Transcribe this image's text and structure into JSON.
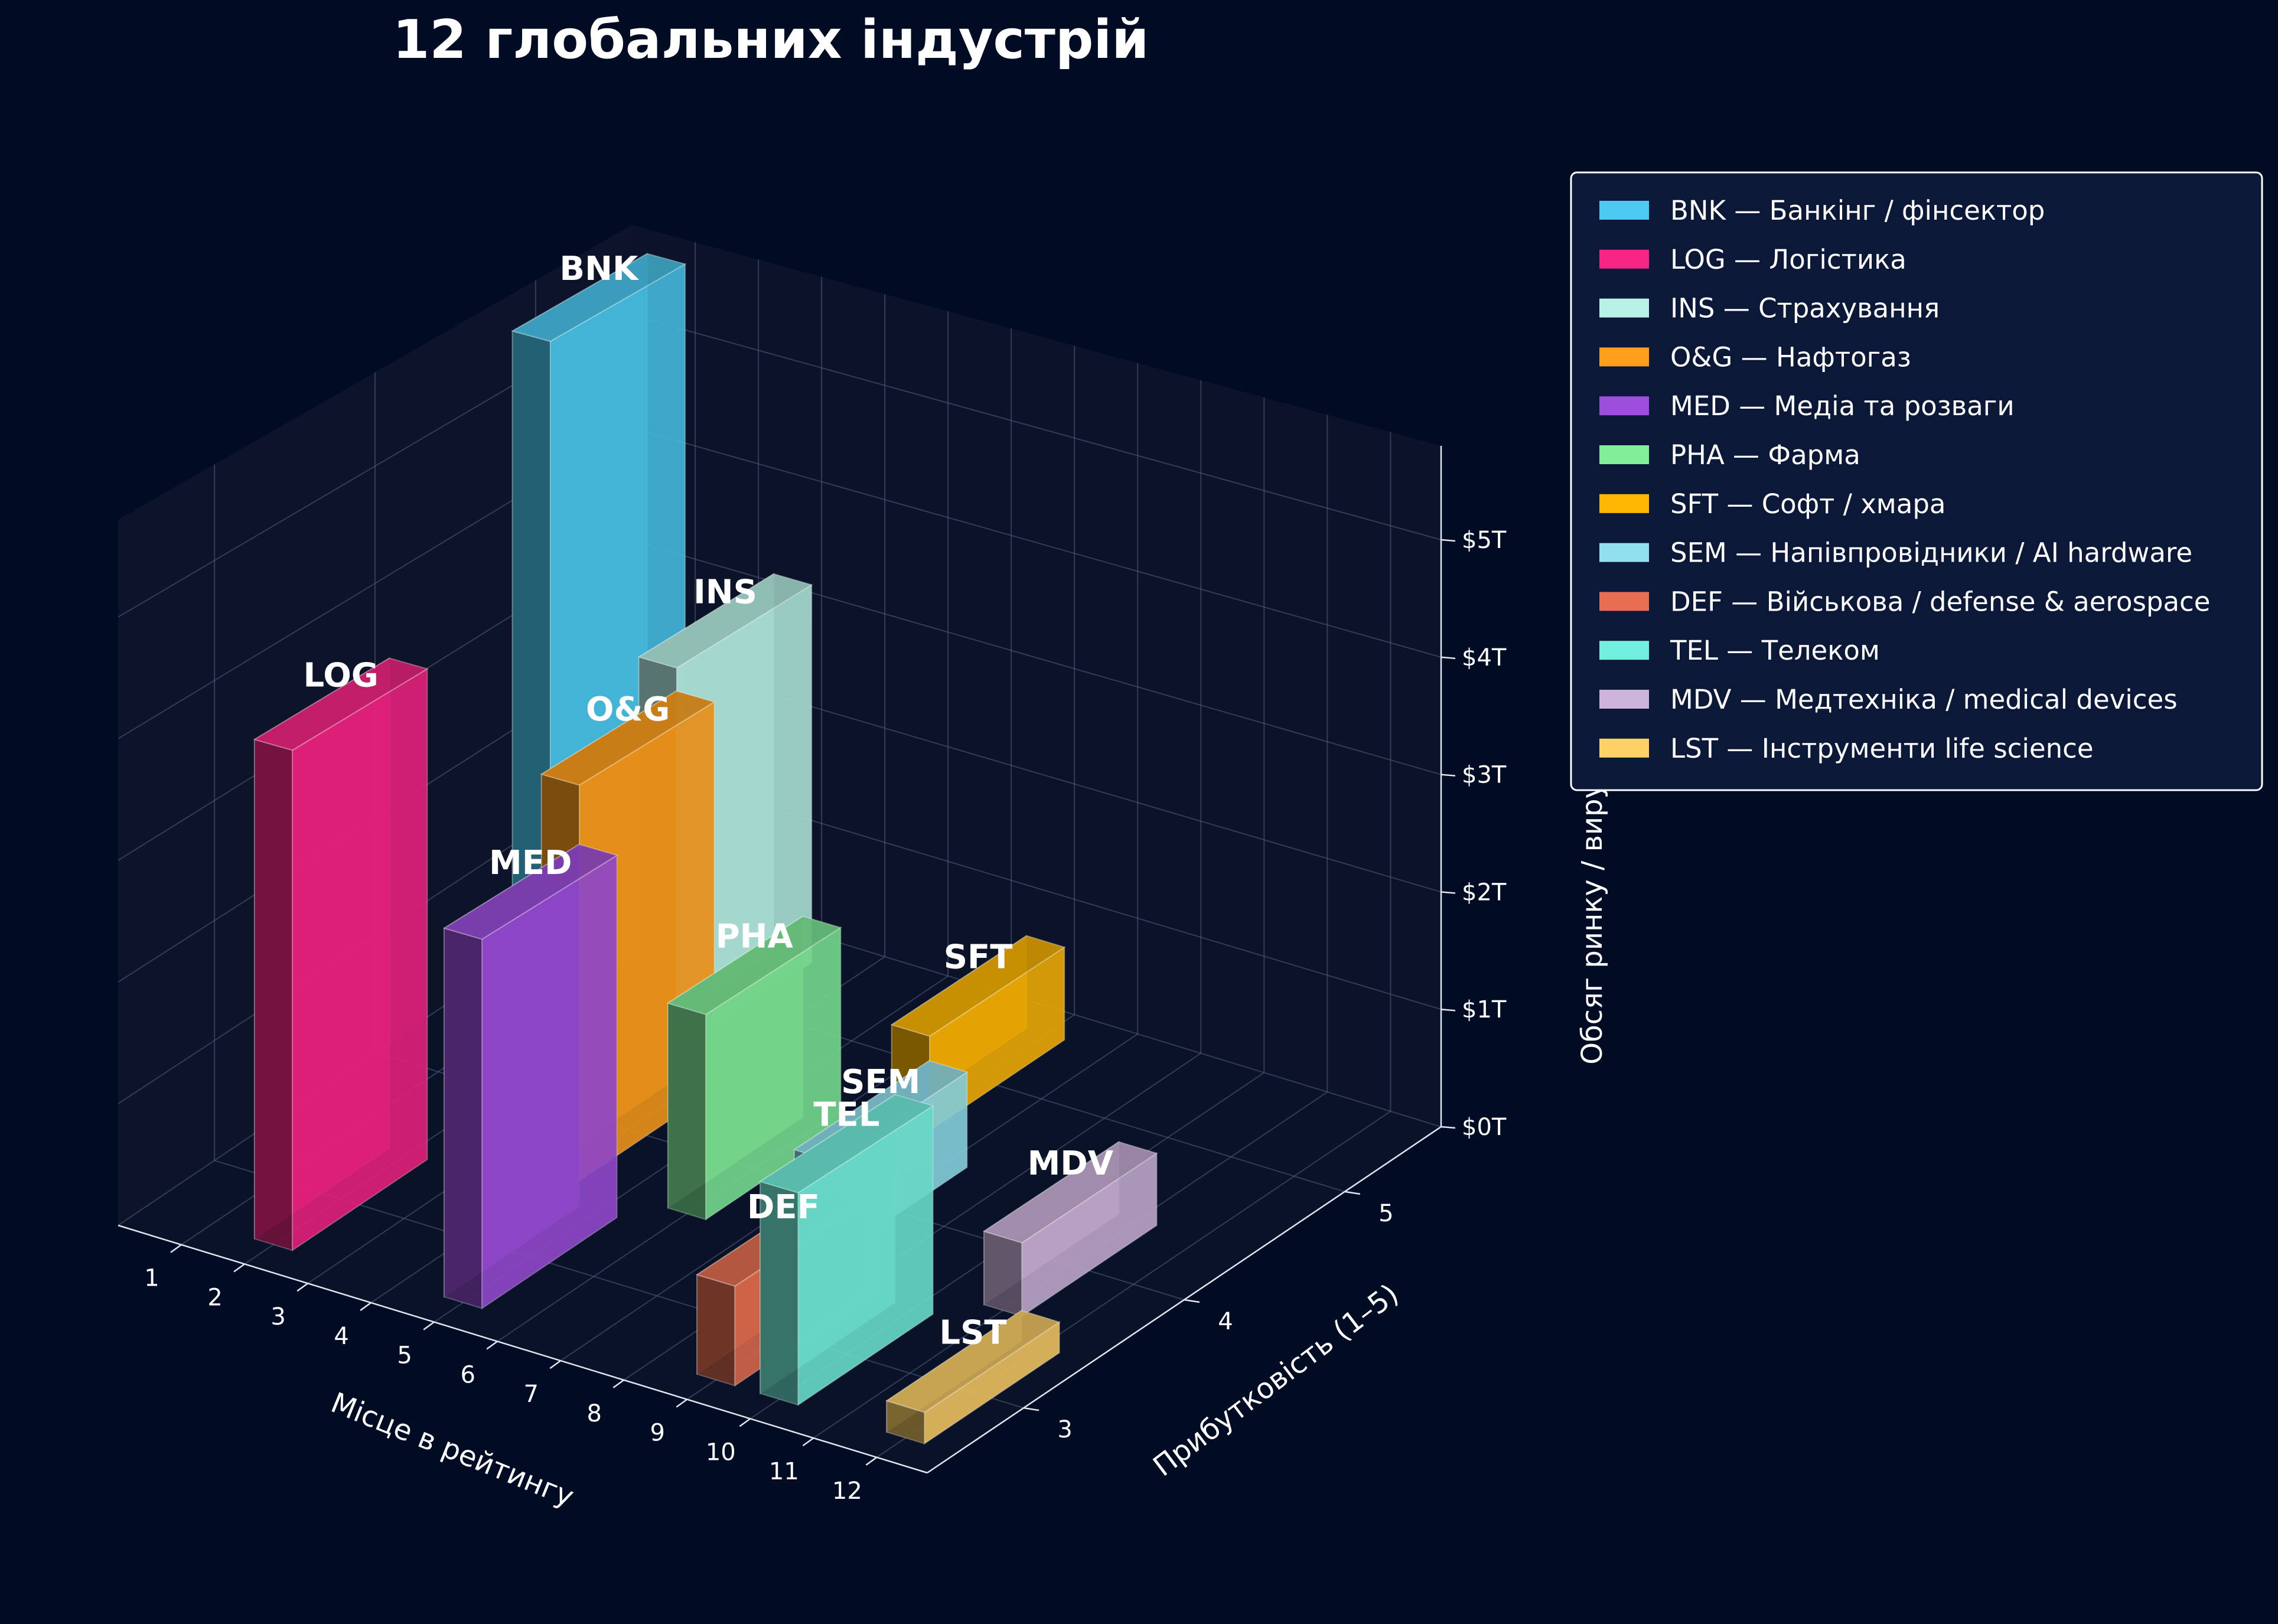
{
  "chart_data": {
    "type": "bar3d",
    "title": "12 глобальних індустрій",
    "xlabel": "Місце в рейтингу",
    "ylabel": "Прибутковість (1–5)",
    "zlabel": "Обсяг ринку / виручка",
    "x_ticks": [
      "1",
      "2",
      "3",
      "4",
      "5",
      "6",
      "7",
      "8",
      "9",
      "10",
      "11",
      "12"
    ],
    "y_ticks": [
      "3",
      "4",
      "5"
    ],
    "z_ticks": [
      "$0T",
      "$1T",
      "$2T",
      "$3T",
      "$4T",
      "$5T"
    ],
    "xlim": [
      0,
      12.8
    ],
    "ylim": [
      2.4,
      5.6
    ],
    "zlim": [
      0,
      5.8
    ],
    "grid": true,
    "legend_position": "upper right, outside plot",
    "series": [
      {
        "code": "BNK",
        "legend": "BNK — Банкінг / фінсектор",
        "color": "#4cc9f0",
        "rank": 1,
        "profitability": 5,
        "value": 5.8
      },
      {
        "code": "LOG",
        "legend": "LOG — Логістика",
        "color": "#f72585",
        "rank": 2,
        "profitability": 3,
        "value": 4.1
      },
      {
        "code": "INS",
        "legend": "INS — Страхування",
        "color": "#b8f2e6",
        "rank": 3,
        "profitability": 5,
        "value": 3.3
      },
      {
        "code": "O&G",
        "legend": "O&G — Нафтогаз",
        "color": "#ff9f1c",
        "rank": 4,
        "profitability": 4,
        "value": 3.3
      },
      {
        "code": "MED",
        "legend": "MED — Медіа та розваги",
        "color": "#9d4edd",
        "rank": 5,
        "profitability": 3,
        "value": 3.0
      },
      {
        "code": "PHA",
        "legend": "PHA — Фарма",
        "color": "#80ed99",
        "rank": 6,
        "profitability": 4,
        "value": 1.7
      },
      {
        "code": "SFT",
        "legend": "SFT — Софт / хмара",
        "color": "#ffb703",
        "rank": 7,
        "profitability": 5,
        "value": 0.8
      },
      {
        "code": "SEM",
        "legend": "SEM — Напівпровідники / AI hardware",
        "color": "#90e0ef",
        "rank": 8,
        "profitability": 4,
        "value": 0.8
      },
      {
        "code": "DEF",
        "legend": "DEF — Військова / defense & aerospace",
        "color": "#e76f51",
        "rank": 9,
        "profitability": 3,
        "value": 0.8
      },
      {
        "code": "TEL",
        "legend": "TEL — Телеком",
        "color": "#72efdd",
        "rank": 10,
        "profitability": 3,
        "value": 1.7
      },
      {
        "code": "MDV",
        "legend": "MDV — Медтехніка / medical devices",
        "color": "#cdb4db",
        "rank": 11,
        "profitability": 4,
        "value": 0.6
      },
      {
        "code": "LST",
        "legend": "LST — Інструменти life science",
        "color": "#ffd166",
        "rank": 12,
        "profitability": 3,
        "value": 0.25
      }
    ]
  }
}
